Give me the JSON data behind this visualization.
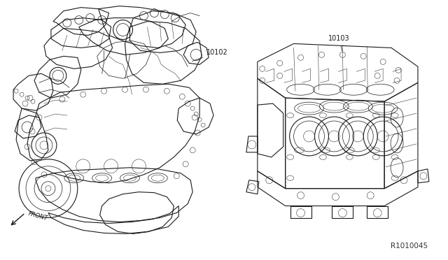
{
  "background_color": "#ffffff",
  "fig_width": 6.4,
  "fig_height": 3.72,
  "dpi": 100,
  "label_10102": "10102",
  "label_10103": "10103",
  "label_front": "FRONT",
  "label_ref": "R1010045",
  "line_color": "#1a1a1a",
  "text_color": "#1a1a1a",
  "lw_main": 0.8,
  "lw_detail": 0.5,
  "lw_thin": 0.35
}
